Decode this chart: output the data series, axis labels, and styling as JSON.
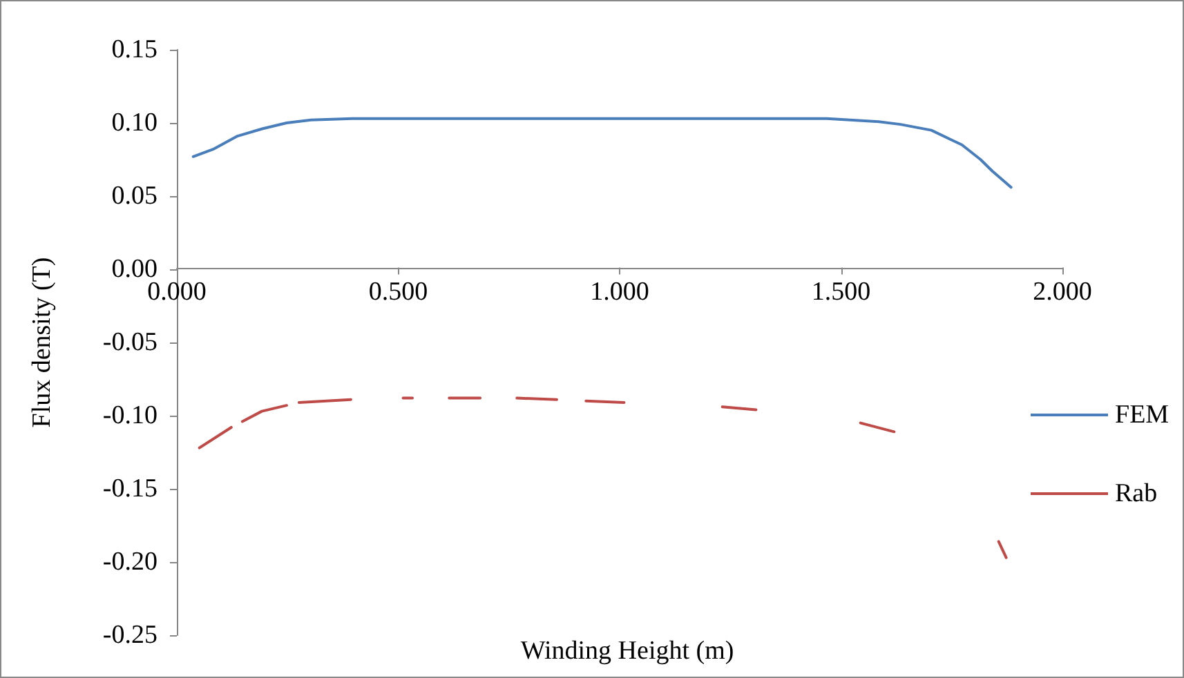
{
  "chart_data": {
    "type": "line",
    "xlabel": "Winding Height (m)",
    "ylabel": "Flux density (T)",
    "xlim": [
      0,
      2
    ],
    "xticks": [
      {
        "value": 0,
        "label": "0.000"
      },
      {
        "value": 0.5,
        "label": "0.500"
      },
      {
        "value": 1,
        "label": "1.000"
      },
      {
        "value": 1.5,
        "label": "1.500"
      },
      {
        "value": 2,
        "label": "2.000"
      }
    ],
    "ylim": [
      -0.25,
      0.15
    ],
    "yticks": [
      {
        "value": -0.25,
        "label": "-0.25"
      },
      {
        "value": -0.2,
        "label": "-0.20"
      },
      {
        "value": -0.15,
        "label": "-0.15"
      },
      {
        "value": -0.1,
        "label": "-0.10"
      },
      {
        "value": -0.05,
        "label": "-0.05"
      },
      {
        "value": 0,
        "label": "0.00"
      },
      {
        "value": 0.05,
        "label": "0.05"
      },
      {
        "value": 0.1,
        "label": "0.10"
      },
      {
        "value": 0.15,
        "label": "0.15"
      }
    ],
    "grid": false,
    "legend": "right",
    "marker": "none",
    "line_style": "solid",
    "series": [
      {
        "name": "FEM",
        "color": "#4a7ebb",
        "x": [
          0.037,
          0.082,
          0.137,
          0.193,
          0.248,
          0.303,
          0.4,
          0.8,
          1.2,
          1.468,
          1.579,
          1.634,
          1.704,
          1.745,
          1.773,
          1.815,
          1.842,
          1.884
        ],
        "values": [
          0.077,
          0.082,
          0.091,
          0.096,
          0.1,
          0.102,
          0.103,
          0.103,
          0.103,
          0.103,
          0.101,
          0.099,
          0.095,
          0.089,
          0.085,
          0.075,
          0.067,
          0.056
        ]
      },
      {
        "name": "Rab",
        "color": "#be4b48",
        "x": [
          0.051,
          0.123,
          0.135,
          0.148,
          0.192,
          0.248,
          0.26,
          0.276,
          0.393,
          0.45,
          0.511,
          0.532,
          0.57,
          0.615,
          0.685,
          0.72,
          0.768,
          0.858,
          0.89,
          0.924,
          1.01,
          1.1,
          1.232,
          1.308,
          1.4,
          1.544,
          1.62,
          1.7,
          1.856,
          1.873
        ],
        "values": [
          -0.122,
          -0.108,
          null,
          -0.104,
          -0.097,
          -0.093,
          null,
          -0.091,
          -0.089,
          null,
          -0.088,
          -0.088,
          null,
          -0.088,
          -0.088,
          null,
          -0.088,
          -0.089,
          null,
          -0.09,
          -0.091,
          null,
          -0.094,
          -0.096,
          null,
          -0.105,
          -0.111,
          null,
          -0.186,
          -0.197
        ]
      }
    ]
  }
}
